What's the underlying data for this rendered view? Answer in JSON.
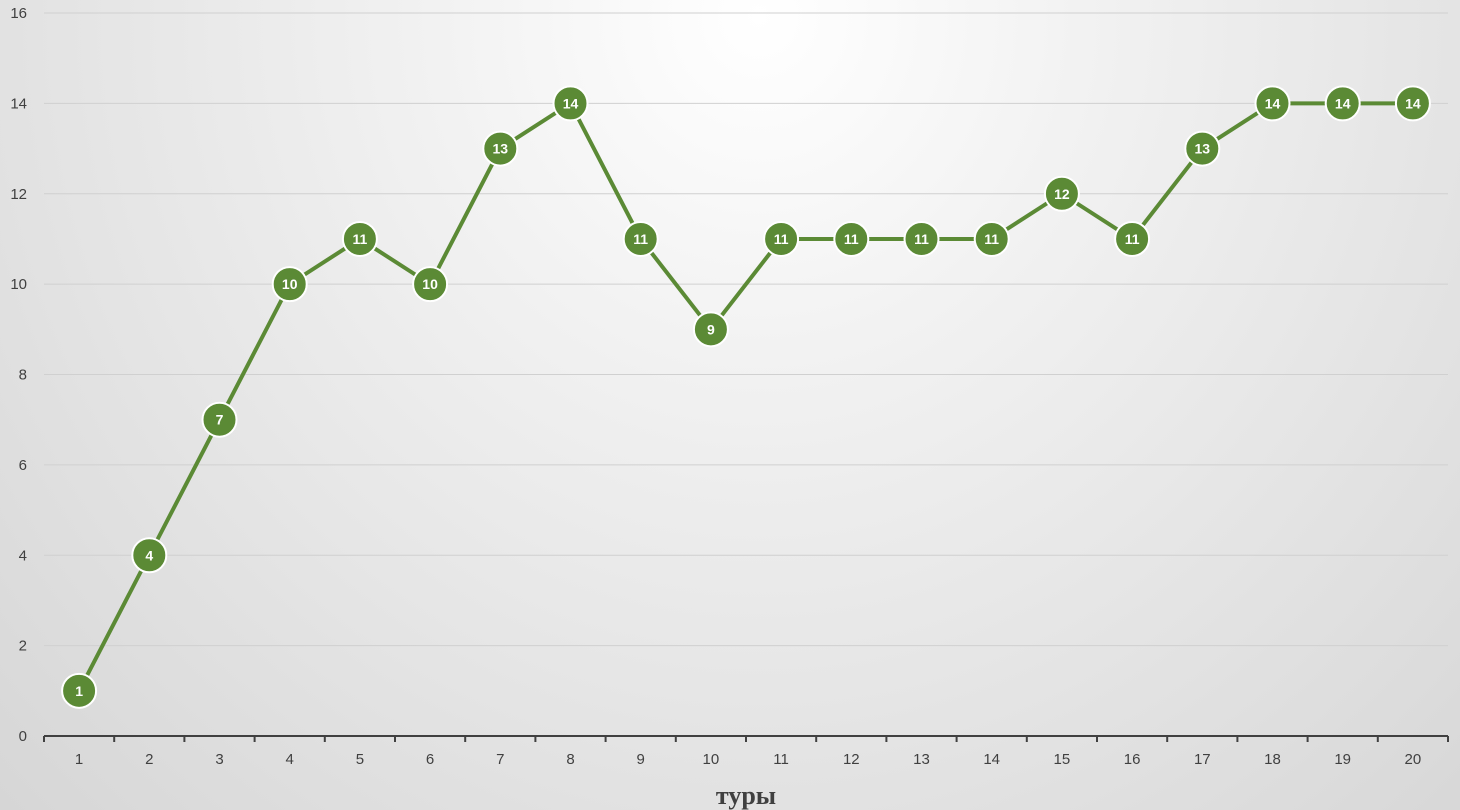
{
  "chart_data": {
    "type": "line",
    "xlabel": "туры",
    "ylabel": "",
    "x": [
      1,
      2,
      3,
      4,
      5,
      6,
      7,
      8,
      9,
      10,
      11,
      12,
      13,
      14,
      15,
      16,
      17,
      18,
      19,
      20
    ],
    "ylim": [
      0,
      16
    ],
    "yticks": [
      0,
      2,
      4,
      6,
      8,
      10,
      12,
      14,
      16
    ],
    "grid": true,
    "series": [
      {
        "values": [
          1,
          4,
          7,
          10,
          11,
          10,
          13,
          14,
          11,
          9,
          11,
          11,
          11,
          11,
          12,
          11,
          13,
          14,
          14,
          14
        ]
      }
    ],
    "data_labels": true,
    "colors": {
      "series": "#5b8a35",
      "marker_stroke": "#ffffff",
      "label": "#ffffff",
      "grid": "#d0d0d0",
      "axis": "#404040"
    }
  }
}
